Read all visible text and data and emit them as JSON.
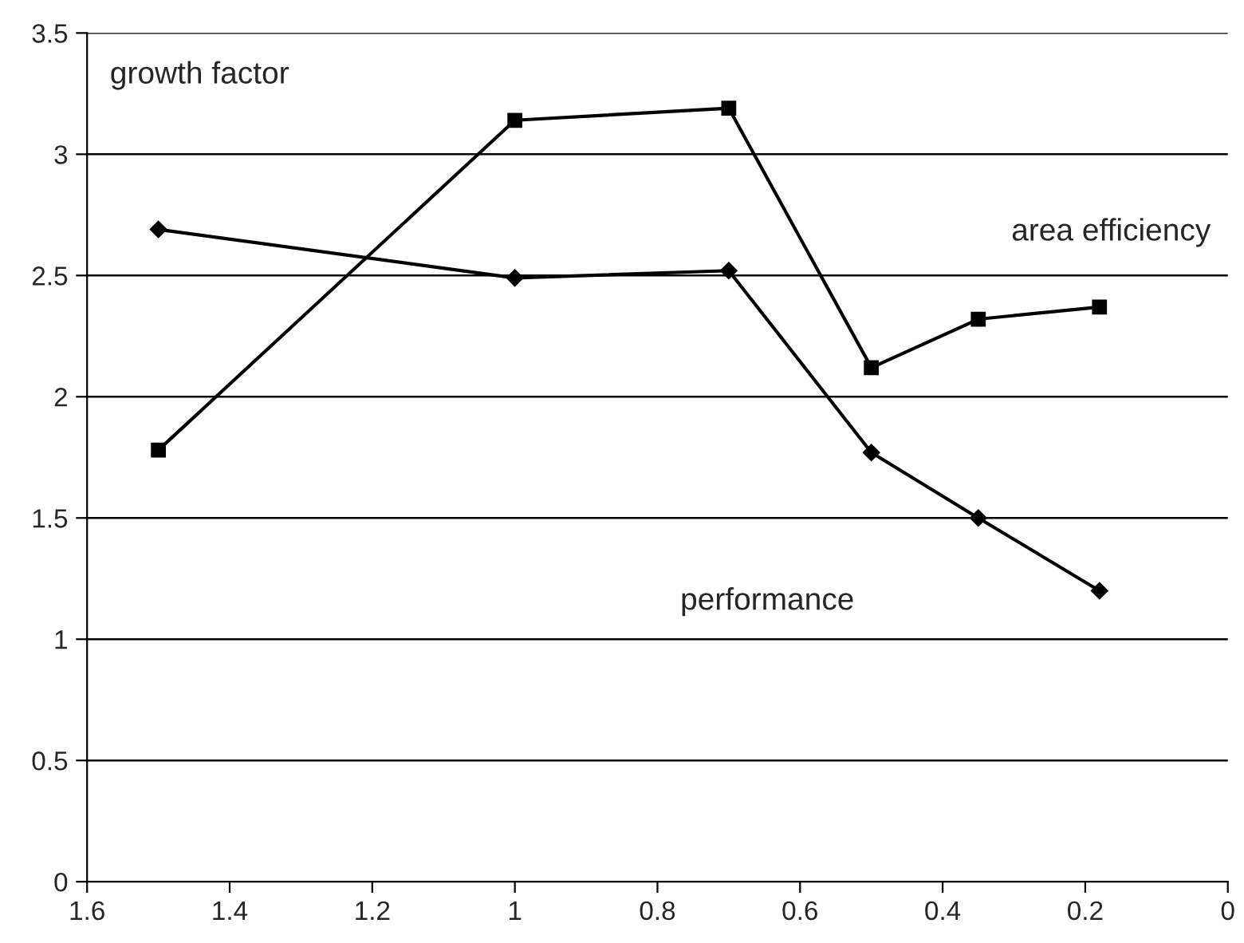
{
  "chart_data": {
    "type": "line",
    "x": [
      1.5,
      1.0,
      0.7,
      0.5,
      0.35,
      0.18
    ],
    "series": [
      {
        "color": "#000000",
        "marker": "square",
        "values": [
          1.78,
          3.14,
          3.19,
          2.12,
          2.32,
          2.37
        ]
      },
      {
        "color": "#000000",
        "marker": "diamond",
        "values": [
          2.69,
          2.49,
          2.52,
          1.77,
          1.5,
          1.2
        ]
      }
    ],
    "xlim": [
      1.6,
      0
    ],
    "xticks": [
      1.6,
      1.4,
      1.2,
      1,
      0.8,
      0.6,
      0.4,
      0.2,
      0
    ],
    "ylim": [
      0,
      3.5
    ],
    "yticks": [
      0,
      0.5,
      1,
      1.5,
      2,
      2.5,
      3,
      3.5
    ],
    "grid": "y",
    "legend": false,
    "line_style": "solid",
    "annotations": [
      "growth factor",
      "area efficiency",
      "performance"
    ]
  }
}
